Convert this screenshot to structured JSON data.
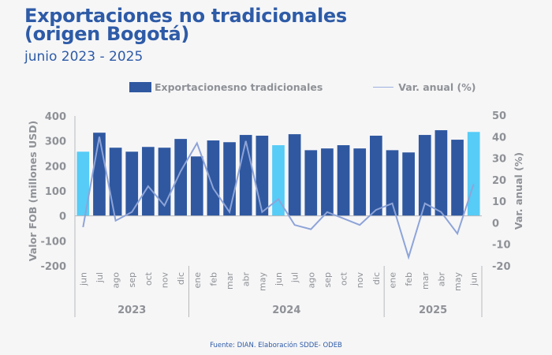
{
  "title_line1": "Exportaciones no tradicionales",
  "title_line2": "(origen Bogotá)",
  "subtitle": "junio 2023 - 2025",
  "source": "Fuente: DIAN. Elaboración SDDE- ODEB",
  "colors": {
    "bar": "#2f58a0",
    "bar_highlight": "#56ccf7",
    "line": "#8ea4d8",
    "text": "#8e9196",
    "title": "#2e5ba7"
  },
  "chart_data": {
    "type": "bar",
    "title": "Exportaciones no tradicionales (origen Bogotá)",
    "subtitle": "junio 2023 - 2025",
    "categories": [
      "jun",
      "jul",
      "ago",
      "sep",
      "oct",
      "nov",
      "dic",
      "ene",
      "feb",
      "mar",
      "abr",
      "may",
      "jun",
      "jul",
      "ago",
      "sep",
      "oct",
      "nov",
      "dic",
      "ene",
      "feb",
      "mar",
      "abr",
      "may",
      "jun"
    ],
    "groups": [
      {
        "label": "2023",
        "start": 0,
        "end": 6
      },
      {
        "label": "2024",
        "start": 7,
        "end": 18
      },
      {
        "label": "2025",
        "start": 19,
        "end": 24
      }
    ],
    "highlight_indices": [
      0,
      12,
      24
    ],
    "series": [
      {
        "name": "Exportacionesno tradicionales",
        "type": "bar",
        "axis": "left",
        "values": [
          257,
          333,
          273,
          257,
          276,
          273,
          308,
          238,
          302,
          295,
          324,
          321,
          283,
          327,
          263,
          270,
          283,
          270,
          321,
          263,
          254,
          324,
          343,
          305,
          336
        ]
      },
      {
        "name": "Var. anual (%)",
        "type": "line",
        "axis": "right",
        "values": [
          -2,
          40,
          1,
          5,
          17,
          8,
          24,
          37,
          16,
          5,
          38,
          5,
          11,
          -1,
          -3,
          5,
          2,
          -1,
          6,
          9,
          -16,
          9,
          5,
          -5,
          18
        ]
      }
    ],
    "ylabel": "Valor FOB (millones USD)",
    "ylim": [
      -200,
      400
    ],
    "yticks": [
      400,
      300,
      200,
      100,
      0,
      -100,
      -200
    ],
    "y2label": "Var. anual (%)",
    "y2lim": [
      -20,
      50
    ],
    "y2ticks": [
      50,
      40,
      30,
      20,
      10,
      0,
      -10,
      -20
    ],
    "legend": "top",
    "grid": false
  }
}
